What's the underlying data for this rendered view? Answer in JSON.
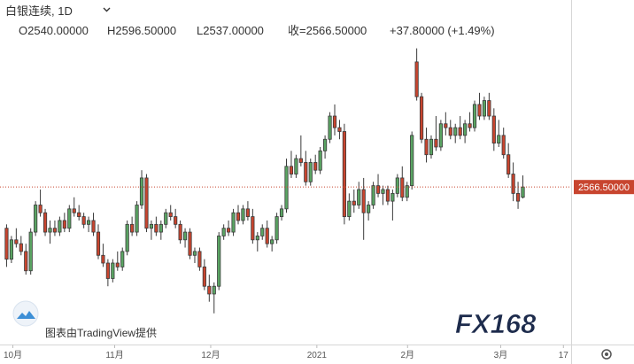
{
  "chart_data": {
    "type": "candlestick",
    "legend": {
      "title": "白银连续, 1D",
      "open": "O2540.00000",
      "high": "H2596.50000",
      "low": "L2537.00000",
      "close": "收=2566.50000",
      "change": "+37.80000 (+1.49%)"
    },
    "last_price": {
      "value": 2566.5,
      "label": "2566.50000"
    },
    "ylim": [
      2180,
      3050
    ],
    "xlim": [
      -1,
      117
    ],
    "xticks": [
      {
        "value": 1.3,
        "label": "10月"
      },
      {
        "value": 22.4,
        "label": "11月"
      },
      {
        "value": 42.3,
        "label": "12月"
      },
      {
        "value": 64.3,
        "label": "2021"
      },
      {
        "value": 83.1,
        "label": "2月"
      },
      {
        "value": 102.4,
        "label": "3月"
      },
      {
        "value": 115.4,
        "label": "17"
      }
    ],
    "up_color": "#5aa463",
    "down_color": "#c8452f",
    "candles": [
      [
        2460,
        2470,
        2360,
        2380
      ],
      [
        2380,
        2440,
        2370,
        2430
      ],
      [
        2430,
        2460,
        2410,
        2420
      ],
      [
        2420,
        2440,
        2390,
        2400
      ],
      [
        2400,
        2420,
        2340,
        2350
      ],
      [
        2350,
        2460,
        2340,
        2450
      ],
      [
        2450,
        2530,
        2440,
        2520
      ],
      [
        2520,
        2560,
        2490,
        2500
      ],
      [
        2500,
        2510,
        2440,
        2450
      ],
      [
        2450,
        2480,
        2420,
        2460
      ],
      [
        2460,
        2480,
        2440,
        2450
      ],
      [
        2450,
        2490,
        2440,
        2480
      ],
      [
        2480,
        2500,
        2450,
        2460
      ],
      [
        2460,
        2520,
        2450,
        2510
      ],
      [
        2510,
        2540,
        2490,
        2500
      ],
      [
        2500,
        2520,
        2480,
        2490
      ],
      [
        2490,
        2500,
        2460,
        2470
      ],
      [
        2470,
        2490,
        2450,
        2480
      ],
      [
        2480,
        2500,
        2440,
        2450
      ],
      [
        2450,
        2470,
        2380,
        2390
      ],
      [
        2390,
        2420,
        2360,
        2370
      ],
      [
        2370,
        2380,
        2310,
        2330
      ],
      [
        2330,
        2380,
        2320,
        2370
      ],
      [
        2370,
        2400,
        2350,
        2360
      ],
      [
        2360,
        2410,
        2350,
        2400
      ],
      [
        2400,
        2480,
        2390,
        2470
      ],
      [
        2470,
        2490,
        2440,
        2450
      ],
      [
        2450,
        2530,
        2440,
        2520
      ],
      [
        2520,
        2610,
        2510,
        2590
      ],
      [
        2590,
        2600,
        2450,
        2460
      ],
      [
        2460,
        2480,
        2430,
        2470
      ],
      [
        2470,
        2490,
        2440,
        2450
      ],
      [
        2450,
        2480,
        2430,
        2470
      ],
      [
        2470,
        2510,
        2460,
        2500
      ],
      [
        2500,
        2520,
        2480,
        2490
      ],
      [
        2490,
        2510,
        2460,
        2470
      ],
      [
        2470,
        2480,
        2420,
        2430
      ],
      [
        2430,
        2460,
        2410,
        2450
      ],
      [
        2450,
        2460,
        2380,
        2390
      ],
      [
        2390,
        2410,
        2370,
        2400
      ],
      [
        2400,
        2410,
        2350,
        2360
      ],
      [
        2360,
        2380,
        2300,
        2310
      ],
      [
        2310,
        2340,
        2270,
        2290
      ],
      [
        2290,
        2320,
        2240,
        2310
      ],
      [
        2310,
        2450,
        2300,
        2440
      ],
      [
        2440,
        2470,
        2430,
        2460
      ],
      [
        2460,
        2480,
        2440,
        2450
      ],
      [
        2450,
        2510,
        2440,
        2500
      ],
      [
        2500,
        2520,
        2470,
        2480
      ],
      [
        2480,
        2520,
        2470,
        2510
      ],
      [
        2510,
        2530,
        2480,
        2490
      ],
      [
        2490,
        2510,
        2420,
        2430
      ],
      [
        2430,
        2450,
        2400,
        2440
      ],
      [
        2440,
        2470,
        2430,
        2460
      ],
      [
        2460,
        2480,
        2410,
        2420
      ],
      [
        2420,
        2440,
        2400,
        2430
      ],
      [
        2430,
        2500,
        2420,
        2490
      ],
      [
        2490,
        2520,
        2480,
        2510
      ],
      [
        2510,
        2640,
        2500,
        2620
      ],
      [
        2620,
        2660,
        2590,
        2600
      ],
      [
        2600,
        2650,
        2590,
        2640
      ],
      [
        2640,
        2700,
        2620,
        2630
      ],
      [
        2630,
        2660,
        2570,
        2580
      ],
      [
        2580,
        2640,
        2570,
        2630
      ],
      [
        2630,
        2650,
        2600,
        2610
      ],
      [
        2610,
        2670,
        2600,
        2660
      ],
      [
        2660,
        2700,
        2640,
        2690
      ],
      [
        2690,
        2760,
        2680,
        2750
      ],
      [
        2750,
        2780,
        2700,
        2720
      ],
      [
        2720,
        2740,
        2690,
        2710
      ],
      [
        2710,
        2730,
        2470,
        2490
      ],
      [
        2490,
        2550,
        2480,
        2530
      ],
      [
        2530,
        2560,
        2500,
        2520
      ],
      [
        2520,
        2580,
        2510,
        2560
      ],
      [
        2560,
        2590,
        2430,
        2500
      ],
      [
        2500,
        2530,
        2480,
        2520
      ],
      [
        2520,
        2580,
        2510,
        2570
      ],
      [
        2570,
        2600,
        2540,
        2550
      ],
      [
        2550,
        2570,
        2520,
        2560
      ],
      [
        2560,
        2570,
        2520,
        2530
      ],
      [
        2530,
        2560,
        2480,
        2550
      ],
      [
        2550,
        2600,
        2540,
        2590
      ],
      [
        2590,
        2620,
        2530,
        2540
      ],
      [
        2540,
        2580,
        2530,
        2570
      ],
      [
        2570,
        2710,
        2560,
        2700
      ],
      [
        2890,
        2925,
        2790,
        2800
      ],
      [
        2800,
        2810,
        2680,
        2690
      ],
      [
        2690,
        2720,
        2630,
        2650
      ],
      [
        2650,
        2700,
        2640,
        2690
      ],
      [
        2690,
        2750,
        2660,
        2670
      ],
      [
        2670,
        2740,
        2660,
        2730
      ],
      [
        2730,
        2760,
        2700,
        2720
      ],
      [
        2720,
        2740,
        2690,
        2700
      ],
      [
        2700,
        2730,
        2680,
        2720
      ],
      [
        2720,
        2750,
        2690,
        2700
      ],
      [
        2700,
        2740,
        2680,
        2730
      ],
      [
        2730,
        2760,
        2710,
        2720
      ],
      [
        2720,
        2790,
        2710,
        2780
      ],
      [
        2780,
        2810,
        2740,
        2750
      ],
      [
        2750,
        2800,
        2740,
        2790
      ],
      [
        2790,
        2810,
        2740,
        2750
      ],
      [
        2750,
        2770,
        2660,
        2680
      ],
      [
        2680,
        2740,
        2670,
        2700
      ],
      [
        2700,
        2720,
        2640,
        2650
      ],
      [
        2650,
        2680,
        2590,
        2600
      ],
      [
        2600,
        2630,
        2530,
        2550
      ],
      [
        2550,
        2580,
        2510,
        2530
      ],
      [
        2540,
        2596.5,
        2537,
        2566.5
      ]
    ],
    "footer": "图表由TradingView提供",
    "logo": "FX168"
  }
}
